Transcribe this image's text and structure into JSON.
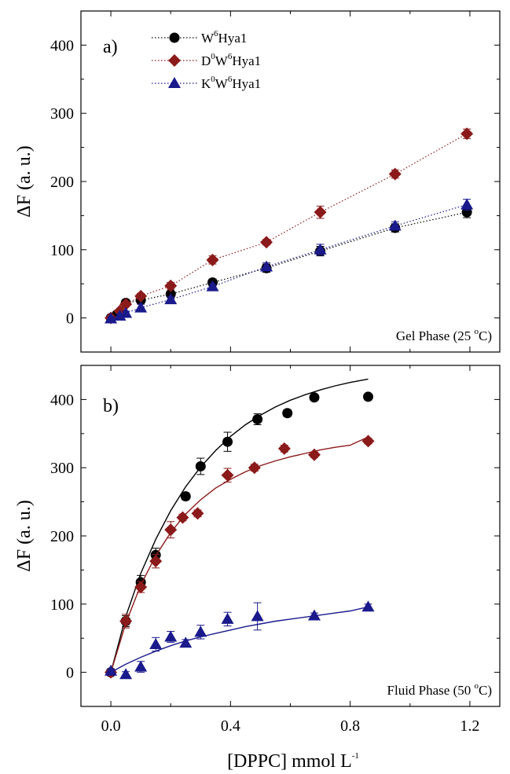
{
  "chart_data": [
    {
      "type": "scatter",
      "panel_tag": "a)",
      "annotation": {
        "main": "Gel Phase (25 ",
        "sup": "o",
        "tail": "C)"
      },
      "ylabel": "ΔF (a. u.)",
      "xlim": [
        -0.1,
        1.3
      ],
      "ylim": [
        -50,
        450
      ],
      "xticks": [
        "0.0",
        "0.4",
        "0.8",
        "1.2"
      ],
      "yticks": [
        "0",
        "100",
        "200",
        "300",
        "400"
      ],
      "grid": false,
      "legend_position": "top-left",
      "series": [
        {
          "name": {
            "a": "W",
            "a_sup": "6",
            "b": "Hya1"
          },
          "color": "#000000",
          "marker": "circle",
          "line": "dotted",
          "x": [
            0.0,
            0.02,
            0.05,
            0.1,
            0.2,
            0.34,
            0.52,
            0.7,
            0.95,
            1.19
          ],
          "y": [
            0,
            5,
            22,
            26,
            35,
            52,
            73,
            98,
            132,
            155
          ],
          "err": [
            3,
            3,
            4,
            4,
            4,
            5,
            6,
            7,
            6,
            8
          ]
        },
        {
          "name": {
            "a": "D",
            "a_sup": "0",
            "b": "W",
            "b_sup": "6",
            "c": "Hya1"
          },
          "color": "#8b1a1a",
          "marker": "diamond",
          "line": "dotted",
          "x": [
            0.0,
            0.03,
            0.05,
            0.1,
            0.2,
            0.34,
            0.52,
            0.7,
            0.95,
            1.19
          ],
          "y": [
            0,
            10,
            20,
            32,
            47,
            85,
            111,
            155,
            211,
            270
          ],
          "err": [
            3,
            3,
            3,
            4,
            5,
            6,
            4,
            9,
            6,
            7
          ]
        },
        {
          "name": {
            "a": "K",
            "a_sup": "0",
            "b": "W",
            "b_sup": "6",
            "c": "Hya1"
          },
          "color": "#1a1a8c",
          "marker": "triangle",
          "line": "dotted",
          "x": [
            0.0,
            0.03,
            0.05,
            0.1,
            0.2,
            0.34,
            0.52,
            0.7,
            0.95,
            1.19
          ],
          "y": [
            -1,
            3,
            7,
            15,
            27,
            46,
            75,
            100,
            135,
            166
          ],
          "err": [
            3,
            3,
            3,
            5,
            4,
            4,
            6,
            8,
            6,
            8
          ]
        }
      ]
    },
    {
      "type": "scatter",
      "panel_tag": "b)",
      "annotation": {
        "main": "Fluid Phase (50 ",
        "sup": "o",
        "tail": "C)"
      },
      "ylabel": "ΔF (a. u.)",
      "xlabel": {
        "main": "[DPPC] mmol L",
        "sup": "-1"
      },
      "xlim": [
        -0.1,
        1.3
      ],
      "ylim": [
        -50,
        450
      ],
      "xticks": [
        "0.0",
        "0.4",
        "0.8",
        "1.2"
      ],
      "yticks": [
        "0",
        "100",
        "200",
        "300",
        "400"
      ],
      "grid": false,
      "series": [
        {
          "color": "#000000",
          "marker": "circle",
          "x": [
            0.0,
            0.05,
            0.1,
            0.15,
            0.25,
            0.3,
            0.39,
            0.49,
            0.59,
            0.68,
            0.86
          ],
          "y": [
            0,
            75,
            132,
            172,
            258,
            302,
            338,
            371,
            380,
            403,
            404
          ],
          "err": [
            3,
            8,
            10,
            10,
            5,
            12,
            14,
            8,
            5,
            4,
            4
          ],
          "fit": {
            "x": [
              0.0,
              0.05,
              0.1,
              0.15,
              0.2,
              0.25,
              0.3,
              0.35,
              0.4,
              0.45,
              0.5,
              0.55,
              0.6,
              0.65,
              0.7,
              0.75,
              0.8,
              0.86
            ],
            "y": [
              0,
              82,
              145,
              195,
              237,
              272,
              301,
              325,
              346,
              363,
              377,
              389,
              399,
              407,
              414,
              420,
              425,
              430
            ]
          }
        },
        {
          "color": "#8b1a1a",
          "marker": "diamond",
          "x": [
            0.0,
            0.05,
            0.1,
            0.15,
            0.2,
            0.24,
            0.29,
            0.39,
            0.48,
            0.58,
            0.68,
            0.86
          ],
          "y": [
            0,
            75,
            125,
            163,
            209,
            227,
            233,
            289,
            300,
            328,
            319,
            339
          ],
          "err": [
            3,
            10,
            8,
            10,
            12,
            5,
            5,
            10,
            5,
            5,
            4,
            4
          ],
          "fit": {
            "x": [
              0.0,
              0.05,
              0.1,
              0.15,
              0.2,
              0.25,
              0.3,
              0.35,
              0.4,
              0.45,
              0.5,
              0.55,
              0.6,
              0.65,
              0.7,
              0.75,
              0.8,
              0.86
            ],
            "y": [
              0,
              72,
              128,
              171,
              205,
              232,
              253,
              270,
              283,
              294,
              303,
              310,
              316,
              321,
              326,
              330,
              333,
              345
            ]
          }
        },
        {
          "color": "#1a1a8c",
          "marker": "triangle",
          "x": [
            0.0,
            0.05,
            0.1,
            0.15,
            0.2,
            0.25,
            0.3,
            0.39,
            0.49,
            0.68,
            0.86
          ],
          "y": [
            2,
            -3,
            8,
            41,
            52,
            43,
            59,
            78,
            82,
            83,
            96
          ],
          "err": [
            3,
            4,
            8,
            10,
            8,
            5,
            10,
            10,
            20,
            4,
            4
          ],
          "fit": {
            "x": [
              0.0,
              0.05,
              0.1,
              0.15,
              0.2,
              0.25,
              0.3,
              0.35,
              0.4,
              0.45,
              0.5,
              0.55,
              0.6,
              0.65,
              0.7,
              0.75,
              0.8,
              0.86
            ],
            "y": [
              0,
              12,
              22,
              31,
              39,
              46,
              52,
              57,
              62,
              67,
              71,
              75,
              78,
              81,
              84,
              87,
              90,
              96
            ]
          }
        }
      ]
    }
  ]
}
